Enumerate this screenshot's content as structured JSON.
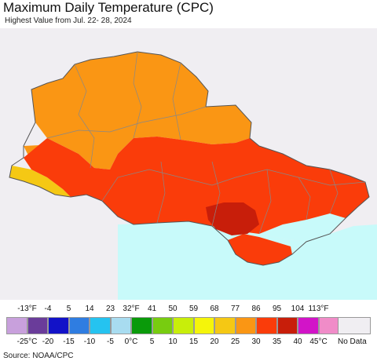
{
  "title": "Maximum Daily Temperature (CPC)",
  "subtitle": "Highest Value from Jul. 22- 28, 2024",
  "legend": {
    "fahrenheit": [
      "-13°F",
      "-4",
      "5",
      "14",
      "23",
      "32°F",
      "41",
      "50",
      "59",
      "68",
      "77",
      "86",
      "95",
      "104",
      "113°F"
    ],
    "celsius": [
      "-25°C",
      "-20",
      "-15",
      "-10",
      "-5",
      "0°C",
      "5",
      "10",
      "15",
      "20",
      "25",
      "30",
      "35",
      "40",
      "45°C"
    ],
    "colors": [
      "#c8a0dc",
      "#6a3c9a",
      "#1212c8",
      "#2f7de1",
      "#25c3f0",
      "#a8dcf0",
      "#0a9a0a",
      "#78cc10",
      "#c8ee0a",
      "#f5f50a",
      "#f5c814",
      "#fa9614",
      "#fa3c0a",
      "#c81e0a",
      "#d214c8",
      "#f08cc8"
    ],
    "no_data_label": "No Data",
    "no_data_color": "#f0eef2"
  },
  "source": "Source: NOAA/CPC",
  "map_colors": {
    "sea": "#c8fafa",
    "background": "#f0eef2",
    "warm_77_86": "#fa9614",
    "hot_86_95": "#fa3c0a",
    "very_hot_95_104": "#c81e0a",
    "cooler_68_77": "#f5c814"
  }
}
